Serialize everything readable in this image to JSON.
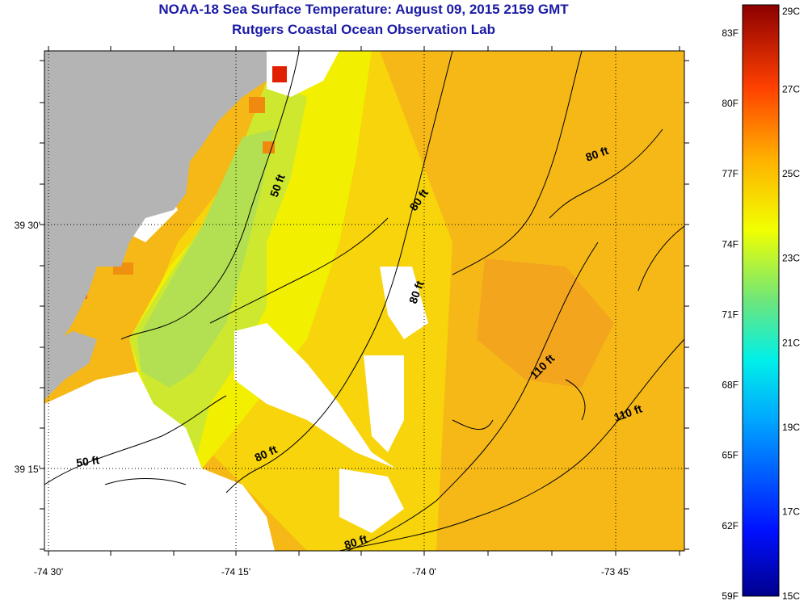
{
  "title": "NOAA-18 Sea Surface Temperature:  August 09, 2015 2159 GMT",
  "subtitle": "Rutgers Coastal Ocean Observation Lab",
  "map": {
    "longitude_ticks": [
      "-74 30'",
      "-74 15'",
      "-74 0'",
      "-73 45'"
    ],
    "latitude_ticks": [
      "39 30'",
      "39 15'"
    ],
    "contour_labels": [
      "50 ft",
      "50 ft",
      "80 ft",
      "80 ft",
      "80 ft",
      "80 ft",
      "80 ft",
      "110 ft",
      "110 ft"
    ],
    "colors": {
      "land": "#b4b4b4",
      "cloud_mask": "#ffffff",
      "contours": "#000000"
    }
  },
  "colorbar": {
    "fahrenheit_labels": [
      "83F",
      "80F",
      "77F",
      "74F",
      "71F",
      "68F",
      "65F",
      "62F",
      "59F"
    ],
    "celsius_labels": [
      "29C",
      "27C",
      "25C",
      "23C",
      "21C",
      "19C",
      "17C",
      "15C"
    ],
    "range_celsius": [
      15,
      29
    ],
    "range_fahrenheit": [
      59,
      84.2
    ]
  }
}
